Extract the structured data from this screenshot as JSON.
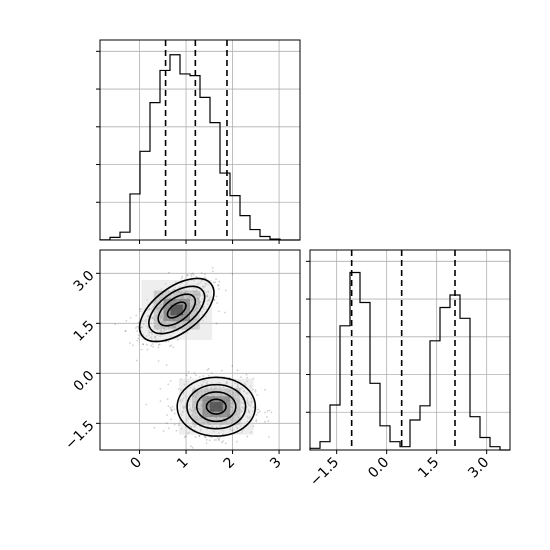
{
  "chart_data": {
    "type": "corner",
    "parameters": [
      "",
      ""
    ],
    "grid": true,
    "hist_x": {
      "type": "histogram",
      "x_range": [
        -0.85,
        3.45
      ],
      "bin_edges": [
        -0.85,
        -0.635,
        -0.42,
        -0.205,
        0.01,
        0.225,
        0.44,
        0.655,
        0.87,
        1.085,
        1.3,
        1.515,
        1.73,
        1.945,
        2.16,
        2.375,
        2.59,
        2.805,
        3.02,
        3.235,
        3.45
      ],
      "counts": [
        1,
        15,
        45,
        265,
        510,
        790,
        975,
        1065,
        955,
        945,
        820,
        675,
        385,
        255,
        140,
        60,
        20,
        5,
        0,
        0
      ],
      "ylim": [
        0,
        1150
      ],
      "quantile_lines": [
        0.56,
        1.2,
        1.88
      ],
      "xticks": [
        0,
        1,
        2,
        3
      ],
      "ytick_count": 5
    },
    "hist_y": {
      "type": "histogram",
      "x_range": [
        -2.3,
        3.7
      ],
      "bin_edges": [
        -2.3,
        -2.0,
        -1.7,
        -1.4,
        -1.1,
        -0.8,
        -0.5,
        -0.2,
        0.1,
        0.4,
        0.7,
        1.0,
        1.3,
        1.6,
        1.9,
        2.2,
        2.5,
        2.8,
        3.1,
        3.4,
        3.7
      ],
      "counts": [
        10,
        50,
        270,
        745,
        1065,
        885,
        400,
        145,
        50,
        20,
        180,
        265,
        655,
        855,
        930,
        790,
        200,
        75,
        20,
        0
      ],
      "ylim": [
        0,
        1200
      ],
      "quantile_lines": [
        -1.05,
        0.45,
        2.05
      ],
      "xticks": [
        -1.5,
        0.0,
        1.5,
        3.0
      ],
      "xtick_labels": [
        "−1.5",
        "0.0",
        "1.5",
        "3.0"
      ],
      "ytick_count": 5
    },
    "scatter_2d": {
      "type": "scatter_density",
      "x_range": [
        -0.85,
        3.45
      ],
      "y_range": [
        -2.3,
        3.7
      ],
      "xticks": [
        0,
        1,
        2,
        3
      ],
      "yticks": [
        -1.5,
        0.0,
        1.5,
        3.0
      ],
      "ytick_labels": [
        "−1.5",
        "0.0",
        "1.5",
        "3.0"
      ],
      "clusters": [
        {
          "mean": [
            0.8,
            1.9
          ],
          "std": [
            0.38,
            0.45
          ],
          "rho": 0.55
        },
        {
          "mean": [
            1.65,
            -1.0
          ],
          "std": [
            0.4,
            0.42
          ],
          "rho": 0.0
        }
      ],
      "contour_sigmas": [
        0.5,
        1.0,
        1.5,
        2.0
      ]
    }
  }
}
